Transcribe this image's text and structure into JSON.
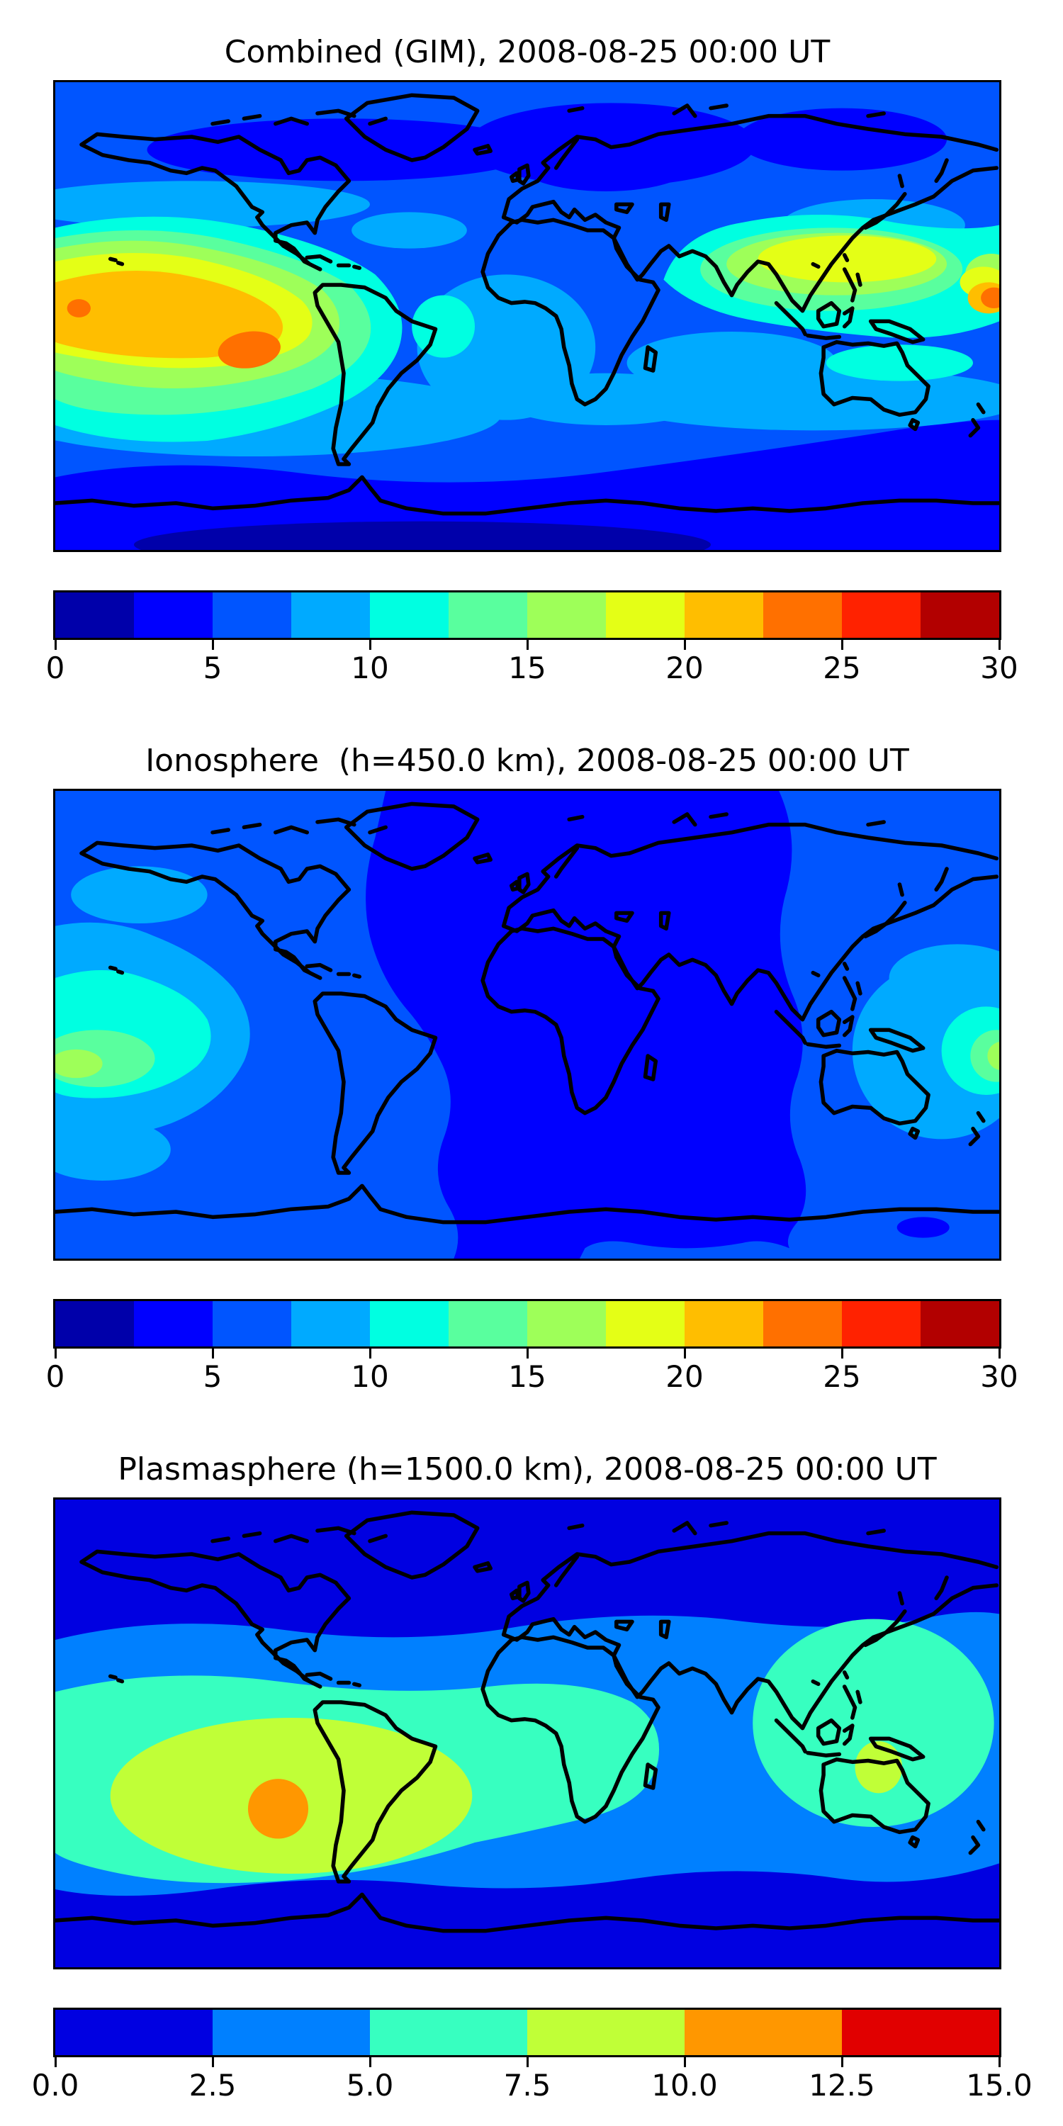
{
  "figure": {
    "background": "#ffffff",
    "text_color": "#000000"
  },
  "palette_12": [
    "#0000AA",
    "#0000FF",
    "#0055FF",
    "#00AAFF",
    "#00FFE1",
    "#59FF9E",
    "#9EFF59",
    "#E4FF16",
    "#FFBE00",
    "#FF7000",
    "#FF2200",
    "#B20000"
  ],
  "palette_6": [
    "#0000E1",
    "#0080FF",
    "#37FFC0",
    "#C0FF37",
    "#FF9700",
    "#E10000"
  ],
  "panels": [
    {
      "id": "combined",
      "title": "Combined (GIM), 2008-08-25 00:00 UT",
      "colorbar": {
        "palette": "palette_12",
        "levels": 12,
        "range": [
          0,
          30
        ],
        "step": 2.5,
        "ticks": [
          "0",
          "5",
          "10",
          "15",
          "20",
          "25",
          "30"
        ]
      }
    },
    {
      "id": "ionosphere",
      "title": "Ionosphere  (h=450.0 km), 2008-08-25 00:00 UT",
      "colorbar": {
        "palette": "palette_12",
        "levels": 12,
        "range": [
          0,
          30
        ],
        "step": 2.5,
        "ticks": [
          "0",
          "5",
          "10",
          "15",
          "20",
          "25",
          "30"
        ]
      }
    },
    {
      "id": "plasmasphere",
      "title": "Plasmasphere (h=1500.0 km), 2008-08-25 00:00 UT",
      "colorbar": {
        "palette": "palette_6",
        "levels": 6,
        "range": [
          0,
          15
        ],
        "step": 2.5,
        "ticks": [
          "0.0",
          "2.5",
          "5.0",
          "7.5",
          "10.0",
          "12.5",
          "15.0"
        ]
      }
    }
  ],
  "chart_data": [
    {
      "type": "heatmap",
      "subtype": "filled_contour_world_map",
      "title": "Combined (GIM), 2008-08-25 00:00 UT",
      "timestamp": "2008-08-25 00:00 UT",
      "projection": "equirectangular",
      "lon_range": [
        -180,
        180
      ],
      "lat_range": [
        -90,
        90
      ],
      "colormap": "jet",
      "contour_levels": [
        0,
        2.5,
        5,
        7.5,
        10,
        12.5,
        15,
        17.5,
        20,
        22.5,
        25,
        27.5,
        30
      ],
      "colorbar_ticks": [
        0,
        5,
        10,
        15,
        20,
        25,
        30
      ],
      "features": [
        {
          "name": "primary equatorial maximum (east Pacific, west of Peru)",
          "lon": -107,
          "lat": -14,
          "value_range": "22.5-25"
        },
        {
          "name": "secondary maximum (west Pacific, near dateline)",
          "lon": 175,
          "lat": 7,
          "value_range": "22.5-25"
        },
        {
          "name": "small local maximum (far west Pacific edge)",
          "lon": -171,
          "lat": 3,
          "value_range": "22.5-25"
        },
        {
          "name": "broad equatorial band across Pacific and SE Asia",
          "value_range": "12.5-22.5"
        },
        {
          "name": "minimum over northern Europe / Siberia",
          "value_range": "2.5-5"
        },
        {
          "name": "southern high-latitude minimum band",
          "value_range": "2.5-5"
        }
      ]
    },
    {
      "type": "heatmap",
      "subtype": "filled_contour_world_map",
      "title": "Ionosphere  (h=450.0 km), 2008-08-25 00:00 UT",
      "timestamp": "2008-08-25 00:00 UT",
      "projection": "equirectangular",
      "lon_range": [
        -180,
        180
      ],
      "lat_range": [
        -90,
        90
      ],
      "colormap": "jet",
      "contour_levels": [
        0,
        2.5,
        5,
        7.5,
        10,
        12.5,
        15,
        17.5,
        20,
        22.5,
        25,
        27.5,
        30
      ],
      "colorbar_ticks": [
        0,
        5,
        10,
        15,
        20,
        25,
        30
      ],
      "features": [
        {
          "name": "broad nightside minimum over Europe / Africa / central Asia / Atlantic",
          "value_range": "2.5-5"
        },
        {
          "name": "equatorial maximum, central Pacific west of the map edge",
          "lon": -171,
          "lat": -16,
          "value_range": "15-17.5"
        },
        {
          "name": "equatorial maximum at the dateline (right edge)",
          "lon": 179,
          "lat": -13,
          "value_range": "15-17.5"
        },
        {
          "name": "background mid-latitude level",
          "value_range": "5-7.5"
        },
        {
          "name": "small deep minima south of Australia and in south Indian Ocean",
          "value_range": "2.5-5"
        }
      ]
    },
    {
      "type": "heatmap",
      "subtype": "filled_contour_world_map",
      "title": "Plasmasphere (h=1500.0 km), 2008-08-25 00:00 UT",
      "timestamp": "2008-08-25 00:00 UT",
      "projection": "equirectangular",
      "lon_range": [
        -180,
        180
      ],
      "lat_range": [
        -90,
        90
      ],
      "colormap": "jet",
      "contour_levels": [
        0,
        2.5,
        5,
        7.5,
        10,
        12.5,
        15
      ],
      "colorbar_ticks": [
        0.0,
        2.5,
        5.0,
        7.5,
        10.0,
        12.5,
        15.0
      ],
      "features": [
        {
          "name": "maximum west of South America",
          "lon": -95,
          "lat": -29,
          "value_range": "10-12.5"
        },
        {
          "name": "large enhancement over South America / east Pacific",
          "value_range": "7.5-10"
        },
        {
          "name": "secondary enhancement near Philippines / New Guinea",
          "lon": 134,
          "lat": -13,
          "value_range": "7.5-10"
        },
        {
          "name": "low-to-mid latitude band around the globe",
          "value_range": "5-7.5"
        },
        {
          "name": "mid-latitude band",
          "value_range": "2.5-5"
        },
        {
          "name": "polar minima north and south",
          "value_range": "0-2.5"
        }
      ]
    }
  ]
}
